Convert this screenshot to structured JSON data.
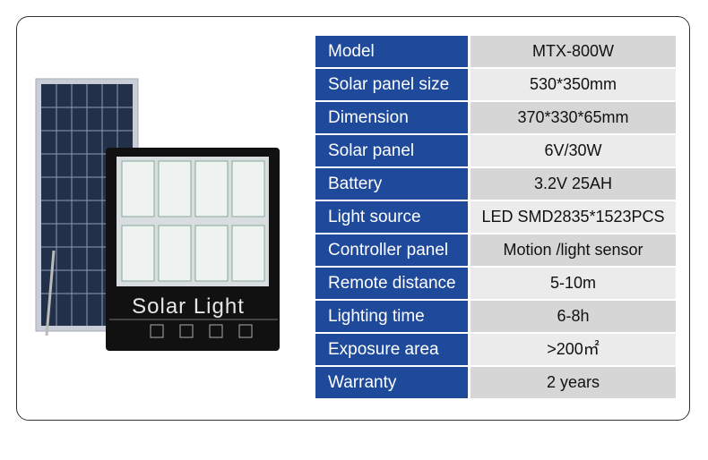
{
  "product": {
    "brand_text": "Solar Light",
    "icons": [
      "lightning-icon",
      "rain-cloud-icon",
      "auto-mode-icon",
      "solar-panel-icon"
    ]
  },
  "specs": [
    {
      "label": "Model",
      "value": "MTX-800W"
    },
    {
      "label": "Solar panel size",
      "value": "530*350mm"
    },
    {
      "label": "Dimension",
      "value": "370*330*65mm"
    },
    {
      "label": "Solar panel",
      "value": "6V/30W"
    },
    {
      "label": "Battery",
      "value": "3.2V  25AH"
    },
    {
      "label": "Light source",
      "value": "LED SMD2835*1523PCS"
    },
    {
      "label": "Controller panel",
      "value": "Motion /light sensor"
    },
    {
      "label": "Remote distance",
      "value": "5-10m"
    },
    {
      "label": "Lighting time",
      "value": "6-8h"
    },
    {
      "label": "Exposure area",
      "value": ">200㎡"
    },
    {
      "label": "Warranty",
      "value": "2 years"
    }
  ],
  "colors": {
    "label_bg": "#1f4a9c",
    "value_bg": "#d6d6d6",
    "value_bg_alt": "#ebebeb"
  }
}
